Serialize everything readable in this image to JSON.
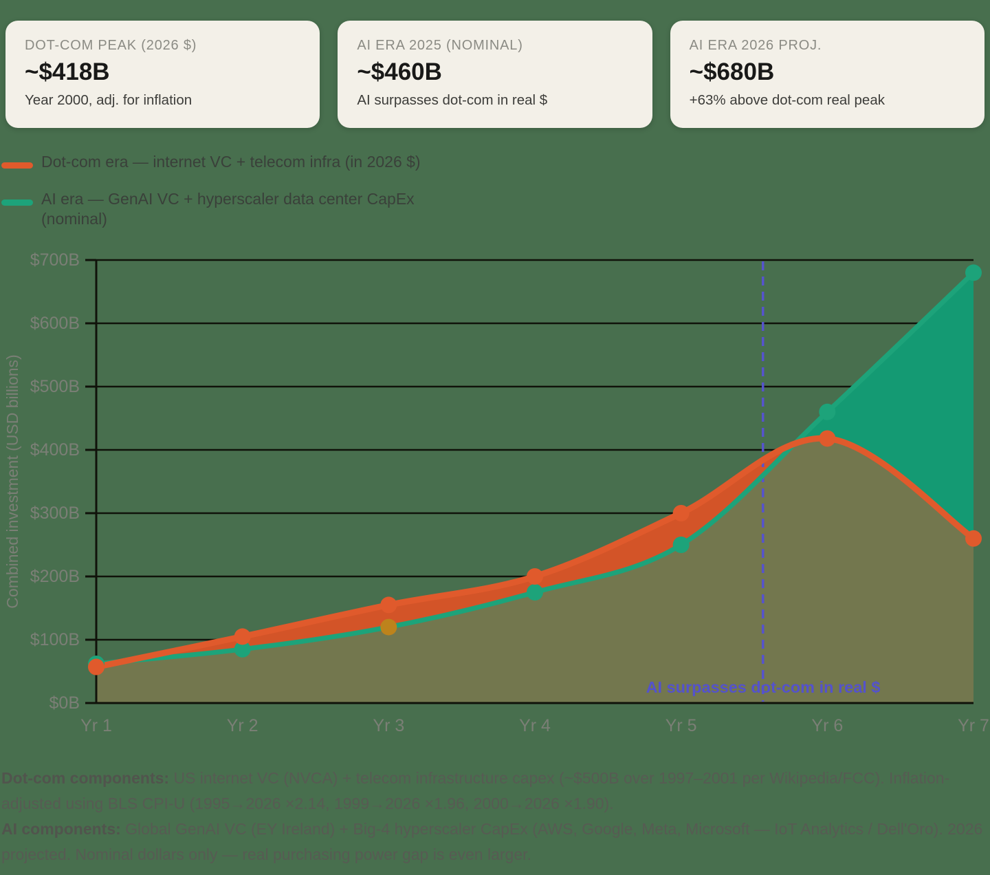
{
  "cards": [
    {
      "label": "DOT-COM PEAK (2026 $)",
      "value": "~$418B",
      "note": "Year 2000, adj. for inflation"
    },
    {
      "label": "AI ERA 2025 (NOMINAL)",
      "value": "~$460B",
      "note": "AI surpasses dot-com in real $"
    },
    {
      "label": "AI ERA 2026 PROJ.",
      "value": "~$680B",
      "note": "+63% above dot-com real peak"
    }
  ],
  "legend": [
    {
      "label": "Dot-com era — internet VC + telecom infra (in 2026 $)",
      "color": "#e05a2c"
    },
    {
      "label": "AI era — GenAI VC + hyperscaler data center CapEx (nominal)",
      "color": "#1da37a"
    }
  ],
  "chart_data": {
    "type": "area",
    "x": [
      "Yr 1",
      "Yr 2",
      "Yr 3",
      "Yr 4",
      "Yr 5",
      "Yr 6",
      "Yr 7"
    ],
    "series": [
      {
        "name": "Dot-com era — internet VC + telecom infra (in 2026 $)",
        "values": [
          57,
          105,
          155,
          200,
          300,
          418,
          260
        ],
        "line_color": "#e05a2c",
        "fill_color": "#d35428",
        "marker_colors": [
          "#e05a2c",
          "#e05a2c",
          "#e05a2c",
          "#e05a2c",
          "#e05a2c",
          "#e05a2c",
          "#e05a2c"
        ]
      },
      {
        "name": "AI era — GenAI VC + hyperscaler data center CapEx (nominal)",
        "values": [
          62,
          85,
          120,
          175,
          250,
          460,
          680
        ],
        "line_color": "#1da37a",
        "fill_color": "#149a73",
        "overlay_opacity": 0.5,
        "marker_colors": [
          "#1da37a",
          "#1da37a",
          "#bd831c",
          "#1da37a",
          "#1da37a",
          "#1da37a",
          "#1da37a"
        ]
      }
    ],
    "ylabel": "Combined investment (USD billions)",
    "y_ticks": [
      "$0B",
      "$100B",
      "$200B",
      "$300B",
      "$400B",
      "$500B",
      "$600B",
      "$700B"
    ],
    "y_tick_values": [
      0,
      100,
      200,
      300,
      400,
      500,
      600,
      700
    ],
    "ylim": [
      0,
      700
    ],
    "grid": true,
    "legend_position": "top-left",
    "annotation": {
      "text": "AI surpasses dot-com in real $",
      "x_index": 4.56,
      "color": "#5452cc"
    },
    "colors": {
      "background": "#486f4e",
      "grid_line": "#10120a",
      "axis_line": "#10120a",
      "tick_label": "#7b7f76",
      "divider": "#5653cd",
      "overlap_fill": "#757b52"
    }
  },
  "footnotes": [
    {
      "lead": "Dot-com components:",
      "text": " US internet VC (NVCA) + telecom infrastructure capex (~$500B over 1997–2001 per Wikipedia/FCC). Inflation-adjusted using BLS CPI-U (1995→2026 ×2.14, 1999→2026 ×1.96, 2000→2026 ×1.90)."
    },
    {
      "lead": "AI components:",
      "text": " Global GenAI VC (EY Ireland) + Big-4 hyperscaler CapEx (AWS, Google, Meta, Microsoft — IoT Analytics / Dell'Oro). 2026 projected. Nominal dollars only — real purchasing power gap is even larger."
    }
  ]
}
